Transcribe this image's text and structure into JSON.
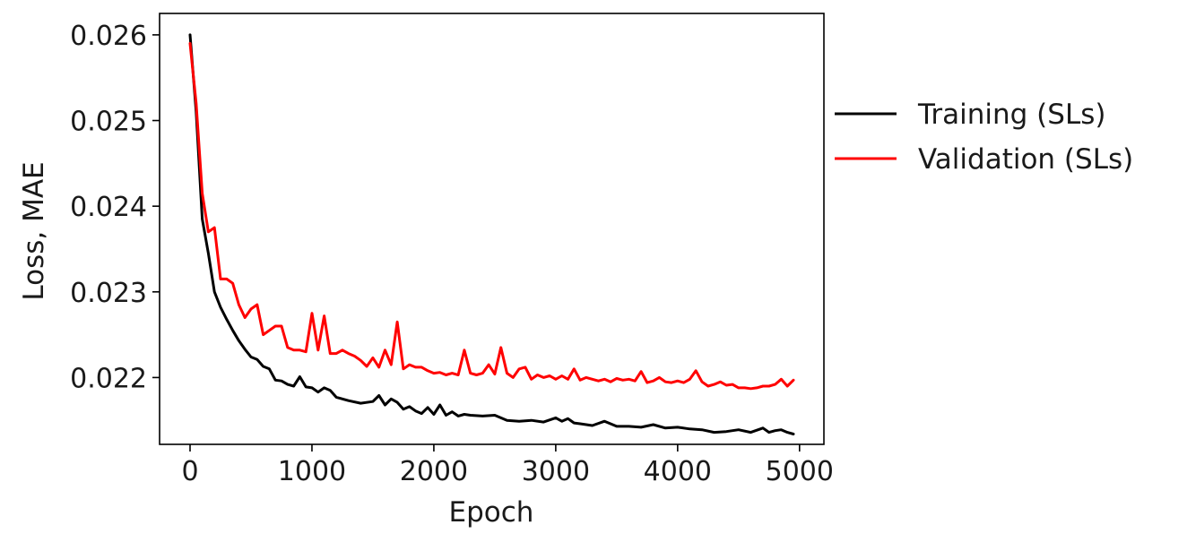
{
  "chart_data": {
    "type": "line",
    "title": "",
    "xlabel": "Epoch",
    "ylabel": "Loss, MAE",
    "xlim": [
      -250,
      5200
    ],
    "ylim": [
      0.02122,
      0.02625
    ],
    "xticks": [
      0,
      1000,
      2000,
      3000,
      4000,
      5000
    ],
    "xtick_labels": [
      "0",
      "1000",
      "2000",
      "3000",
      "4000",
      "5000"
    ],
    "yticks": [
      0.022,
      0.023,
      0.024,
      0.025,
      0.026
    ],
    "ytick_labels": [
      "0.022",
      "0.023",
      "0.024",
      "0.025",
      "0.026"
    ],
    "grid": false,
    "legend_position": "outside-right",
    "series": [
      {
        "name": "Training (SLs)",
        "color": "#000000",
        "x": [
          0,
          50,
          100,
          150,
          200,
          250,
          300,
          350,
          400,
          450,
          500,
          550,
          600,
          650,
          700,
          750,
          800,
          850,
          900,
          950,
          1000,
          1050,
          1100,
          1150,
          1200,
          1300,
          1400,
          1500,
          1550,
          1600,
          1650,
          1700,
          1750,
          1800,
          1850,
          1900,
          1950,
          2000,
          2050,
          2100,
          2150,
          2200,
          2250,
          2300,
          2400,
          2500,
          2600,
          2700,
          2800,
          2900,
          3000,
          3050,
          3100,
          3150,
          3200,
          3300,
          3400,
          3500,
          3600,
          3700,
          3800,
          3900,
          4000,
          4100,
          4200,
          4300,
          4400,
          4500,
          4600,
          4700,
          4750,
          4800,
          4850,
          4900,
          4950
        ],
        "y": [
          0.026,
          0.0251,
          0.02385,
          0.02345,
          0.023,
          0.02282,
          0.02268,
          0.02255,
          0.02243,
          0.02233,
          0.02224,
          0.02221,
          0.02213,
          0.0221,
          0.02197,
          0.02196,
          0.02192,
          0.0219,
          0.02201,
          0.02189,
          0.02188,
          0.02183,
          0.02188,
          0.02185,
          0.02177,
          0.02173,
          0.0217,
          0.02172,
          0.02179,
          0.02168,
          0.02175,
          0.02171,
          0.02163,
          0.02166,
          0.02161,
          0.02158,
          0.02165,
          0.02157,
          0.02168,
          0.02156,
          0.0216,
          0.02155,
          0.02157,
          0.02156,
          0.02155,
          0.02156,
          0.0215,
          0.02149,
          0.0215,
          0.02148,
          0.02153,
          0.02149,
          0.02152,
          0.02147,
          0.02146,
          0.02144,
          0.02149,
          0.02143,
          0.02143,
          0.02142,
          0.02145,
          0.02141,
          0.02142,
          0.0214,
          0.02139,
          0.02136,
          0.02137,
          0.02139,
          0.02136,
          0.02141,
          0.02136,
          0.02138,
          0.02139,
          0.02136,
          0.02134
        ]
      },
      {
        "name": "Validation (SLs)",
        "color": "#ff0000",
        "x": [
          0,
          50,
          100,
          150,
          200,
          250,
          300,
          350,
          400,
          450,
          500,
          550,
          600,
          650,
          700,
          750,
          800,
          850,
          900,
          950,
          1000,
          1050,
          1100,
          1150,
          1200,
          1250,
          1300,
          1350,
          1400,
          1450,
          1500,
          1550,
          1600,
          1650,
          1700,
          1750,
          1800,
          1850,
          1900,
          1950,
          2000,
          2050,
          2100,
          2150,
          2200,
          2250,
          2300,
          2350,
          2400,
          2450,
          2500,
          2550,
          2600,
          2650,
          2700,
          2750,
          2800,
          2850,
          2900,
          2950,
          3000,
          3050,
          3100,
          3150,
          3200,
          3250,
          3300,
          3350,
          3400,
          3450,
          3500,
          3550,
          3600,
          3650,
          3700,
          3750,
          3800,
          3850,
          3900,
          3950,
          4000,
          4050,
          4100,
          4150,
          4200,
          4250,
          4300,
          4350,
          4400,
          4450,
          4500,
          4550,
          4600,
          4650,
          4700,
          4750,
          4800,
          4850,
          4900,
          4950
        ],
        "y": [
          0.0259,
          0.0252,
          0.02415,
          0.0237,
          0.02375,
          0.02315,
          0.02315,
          0.0231,
          0.02285,
          0.0227,
          0.0228,
          0.02285,
          0.0225,
          0.02255,
          0.0226,
          0.0226,
          0.02235,
          0.02232,
          0.02232,
          0.0223,
          0.02275,
          0.02232,
          0.02272,
          0.02228,
          0.02228,
          0.02232,
          0.02228,
          0.02225,
          0.0222,
          0.02213,
          0.02223,
          0.02212,
          0.02232,
          0.02215,
          0.02265,
          0.0221,
          0.02215,
          0.02212,
          0.02212,
          0.02208,
          0.02205,
          0.02206,
          0.02203,
          0.02205,
          0.02203,
          0.02232,
          0.02205,
          0.02203,
          0.02205,
          0.02215,
          0.02204,
          0.02235,
          0.02205,
          0.022,
          0.0221,
          0.02212,
          0.02198,
          0.02203,
          0.022,
          0.02202,
          0.02198,
          0.02202,
          0.02198,
          0.0221,
          0.02197,
          0.022,
          0.02198,
          0.02196,
          0.02198,
          0.02195,
          0.02199,
          0.02197,
          0.02198,
          0.02196,
          0.02207,
          0.02194,
          0.02196,
          0.022,
          0.02195,
          0.02194,
          0.02196,
          0.02194,
          0.02198,
          0.02208,
          0.02195,
          0.0219,
          0.02192,
          0.02195,
          0.02191,
          0.02192,
          0.02188,
          0.02188,
          0.02187,
          0.02188,
          0.0219,
          0.0219,
          0.02192,
          0.02198,
          0.0219,
          0.02197
        ]
      }
    ]
  }
}
